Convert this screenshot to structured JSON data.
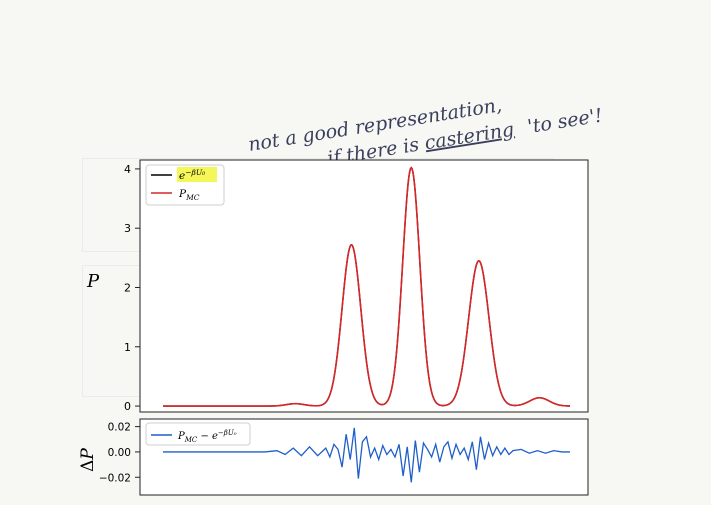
{
  "annotation": {
    "line1": "not a good representation,",
    "line2": "if there is ",
    "line2_word": "castering",
    "line2_tail": "'to see'!"
  },
  "chart_data": [
    {
      "type": "line",
      "ylabel": "P",
      "xlabel": "",
      "ylim": [
        -0.1,
        4.15
      ],
      "yticks": [
        0,
        1,
        2,
        3,
        4
      ],
      "x_range": [
        0,
        100
      ],
      "grid": false,
      "legend": "top-left",
      "legend_entries": [
        {
          "label": "e^{-βU₀}",
          "color": "#000000",
          "highlighted": true
        },
        {
          "label": "P_MC",
          "color": "#d62728"
        }
      ],
      "peaks": [
        {
          "x": 32.5,
          "height": 0.04,
          "width": 2.2
        },
        {
          "x": 46.3,
          "height": 2.72,
          "width": 2.3
        },
        {
          "x": 61.0,
          "height": 4.02,
          "width": 2.1
        },
        {
          "x": 77.6,
          "height": 2.45,
          "width": 2.5
        },
        {
          "x": 92.5,
          "height": 0.14,
          "width": 2.4
        }
      ]
    },
    {
      "type": "line",
      "ylabel": "ΔP",
      "xlabel": "",
      "ylim": [
        -0.034,
        0.026
      ],
      "yticks": [
        0.02,
        0.0,
        -0.02
      ],
      "ytick_labels": [
        "0.02",
        "0.00",
        "−0.02"
      ],
      "legend": "top-left",
      "legend_entries": [
        {
          "label": "P_MC − e^{-βU₀}",
          "color": "#1f5fc8"
        }
      ],
      "series": [
        {
          "color": "#1f5fc8",
          "x": [
            0,
            5,
            10,
            15,
            20,
            25,
            28,
            30,
            32,
            34,
            36,
            38,
            40,
            41,
            42,
            43,
            44,
            45,
            46,
            47,
            48,
            49,
            50,
            51,
            52,
            53,
            54,
            55,
            56,
            57,
            58,
            59,
            60,
            61,
            62,
            63,
            64,
            65,
            66,
            67,
            68,
            69,
            70,
            71,
            72,
            73,
            74,
            75,
            76,
            77,
            78,
            79,
            80,
            81,
            82,
            83,
            84,
            85,
            86,
            88,
            90,
            92,
            94,
            96,
            98,
            100
          ],
          "y": [
            0,
            0,
            0,
            0,
            0,
            0,
            0.001,
            -0.002,
            0.003,
            -0.003,
            0.004,
            -0.003,
            0.003,
            -0.004,
            0.006,
            0.002,
            -0.012,
            0.014,
            -0.006,
            0.019,
            -0.021,
            0.008,
            0.012,
            -0.004,
            0.003,
            -0.006,
            0.005,
            -0.002,
            0.002,
            -0.004,
            0.006,
            -0.019,
            0.004,
            -0.024,
            0.009,
            -0.016,
            0.007,
            0.002,
            -0.004,
            0.006,
            -0.008,
            0.004,
            0.008,
            -0.005,
            0.006,
            -0.002,
            0.003,
            -0.006,
            0.008,
            -0.014,
            0.012,
            -0.006,
            0.007,
            -0.003,
            0.004,
            -0.002,
            0.003,
            -0.002,
            0.001,
            0.002,
            -0.001,
            0.001,
            -0.001,
            0.001,
            0,
            0
          ]
        }
      ]
    }
  ]
}
